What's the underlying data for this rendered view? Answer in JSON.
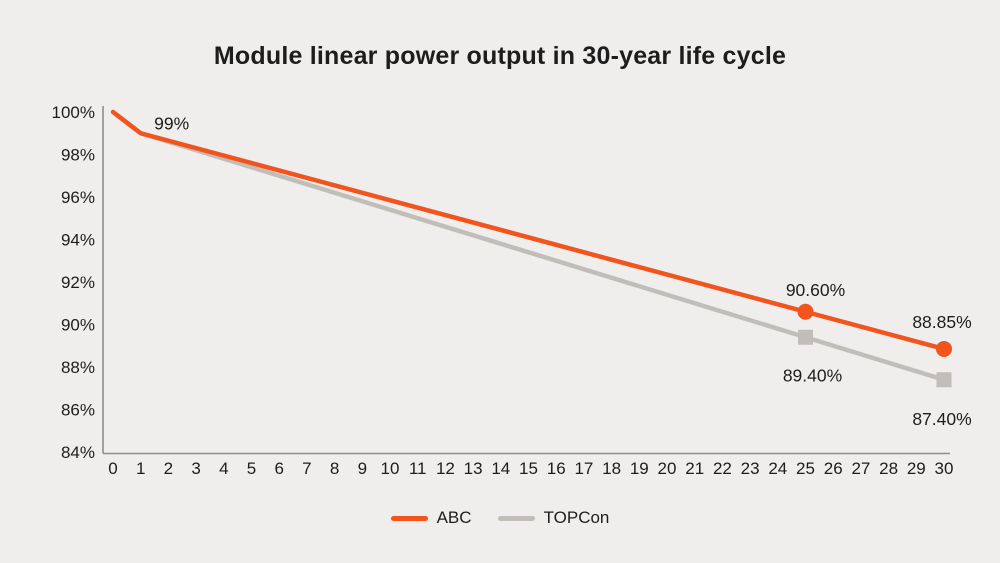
{
  "title": "Module linear power output in 30-year life cycle",
  "colors": {
    "background": "#efeeec",
    "abc_orange": "#f2541d",
    "topcon_gray": "#c1beba",
    "axis": "#8d8d8a",
    "text": "#1d1d1d"
  },
  "chart_data": {
    "type": "line",
    "title": "Module linear power output in 30-year life cycle",
    "xlabel": "",
    "ylabel": "",
    "xlim": [
      0,
      30
    ],
    "ylim": [
      84,
      100
    ],
    "x_ticks": [
      0,
      1,
      2,
      3,
      4,
      5,
      6,
      7,
      8,
      9,
      10,
      11,
      12,
      13,
      14,
      15,
      16,
      17,
      18,
      19,
      20,
      21,
      22,
      23,
      24,
      25,
      26,
      27,
      28,
      29,
      30
    ],
    "y_ticks": [
      100,
      98,
      96,
      94,
      92,
      90,
      88,
      86,
      84
    ],
    "y_tick_suffix": "%",
    "grid": false,
    "legend_position": "bottom-center",
    "series": [
      {
        "name": "TOPCon",
        "color": "#c1beba",
        "marker": "square",
        "x": [
          0,
          1,
          25,
          30
        ],
        "values": [
          100,
          99,
          89.4,
          87.4
        ],
        "marker_points": [
          {
            "x": 25,
            "value": 89.4
          },
          {
            "x": 30,
            "value": 87.4
          }
        ],
        "labels": [
          {
            "x": 25,
            "value": 89.4,
            "text": "89.40%",
            "dx": 7,
            "dy": 38
          },
          {
            "x": 30,
            "value": 87.4,
            "text": "87.40%",
            "dx": -2,
            "dy": 39
          }
        ]
      },
      {
        "name": "ABC",
        "color": "#f2541d",
        "marker": "circle",
        "x": [
          0,
          1,
          25,
          30
        ],
        "values": [
          100,
          99,
          90.6,
          88.85
        ],
        "marker_points": [
          {
            "x": 25,
            "value": 90.6
          },
          {
            "x": 30,
            "value": 88.85
          }
        ],
        "labels": [
          {
            "x": 1,
            "value": 99,
            "text": "99%",
            "dx": 31,
            "dy": -10
          },
          {
            "x": 25,
            "value": 90.6,
            "text": "90.60%",
            "dx": 10,
            "dy": -22
          },
          {
            "x": 30,
            "value": 88.85,
            "text": "88.85%",
            "dx": -2,
            "dy": -27
          }
        ]
      }
    ],
    "legend_items": [
      "ABC",
      "TOPCon"
    ]
  }
}
